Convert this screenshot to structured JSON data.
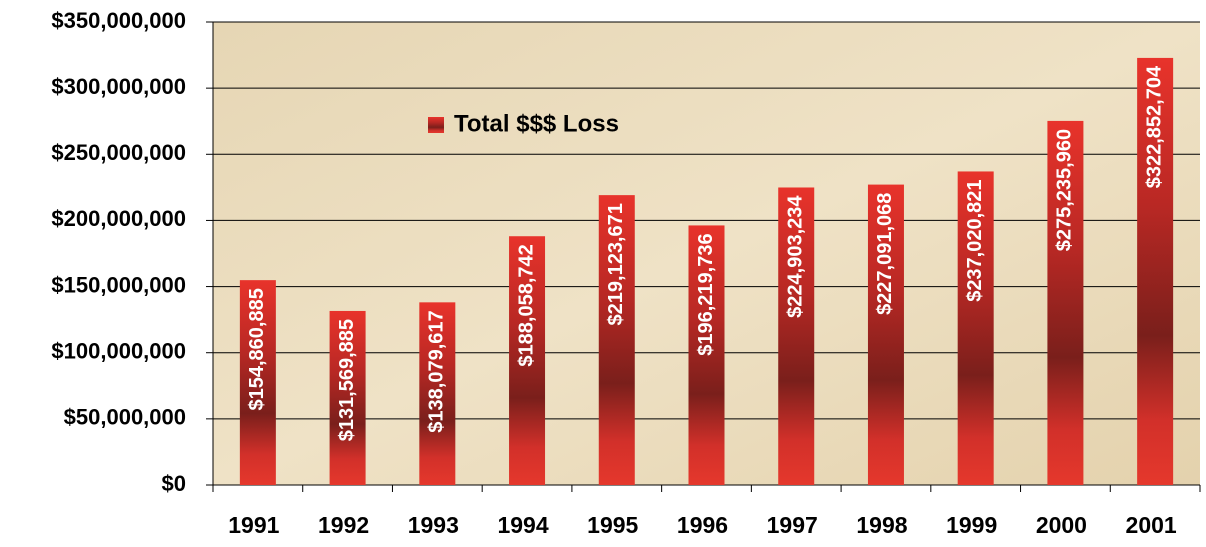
{
  "chart_data": {
    "type": "bar",
    "categories": [
      "1991",
      "1992",
      "1993",
      "1994",
      "1995",
      "1996",
      "1997",
      "1998",
      "1999",
      "2000",
      "2001"
    ],
    "series": [
      {
        "name": "Total $$$ Loss",
        "color": "#e2302a",
        "values": [
          154860885,
          131569885,
          138079617,
          188058742,
          219123671,
          196219736,
          224903234,
          227091068,
          237020821,
          275235960,
          322852704
        ],
        "value_labels": [
          "$154,860,885",
          "$131,569,885",
          "$138,079,617",
          "$188,058,742",
          "$219,123,671",
          "$196,219,736",
          "$224,903,234",
          "$227,091,068",
          "$237,020,821",
          "$275,235,960",
          "$322,852,704"
        ]
      }
    ],
    "ylim": [
      0,
      350000000
    ],
    "yticks": [
      {
        "value": 0,
        "label": "$0"
      },
      {
        "value": 50000000,
        "label": "$50,000,000"
      },
      {
        "value": 100000000,
        "label": "$100,000,000"
      },
      {
        "value": 150000000,
        "label": "$150,000,000"
      },
      {
        "value": 200000000,
        "label": "$200,000,000"
      },
      {
        "value": 250000000,
        "label": "$250,000,000"
      },
      {
        "value": 300000000,
        "label": "$300,000,000"
      },
      {
        "value": 350000000,
        "label": "$350,000,000"
      }
    ],
    "grid": true,
    "legend": "upper left"
  }
}
